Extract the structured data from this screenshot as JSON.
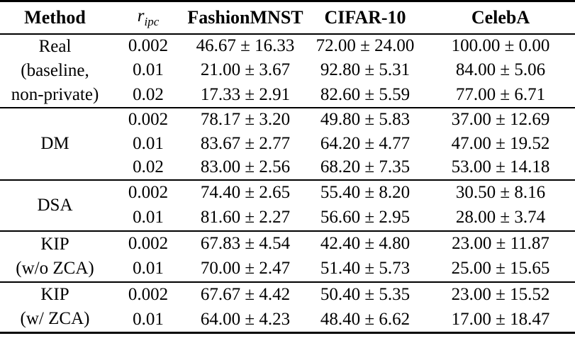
{
  "header": {
    "method": "Method",
    "ripc_base": "r",
    "ripc_sub": "ipc",
    "fashionmnst": "FashionMNST",
    "cifar10": "CIFAR-10",
    "celeba": "CelebA"
  },
  "groups": [
    {
      "method_lines": [
        "Real",
        "(baseline,",
        "non-private)"
      ],
      "rows": [
        {
          "ripc": "0.002",
          "fashionmnst": "46.67 ± 16.33",
          "cifar10": "72.00 ± 24.00",
          "celeba": "100.00 ± 0.00"
        },
        {
          "ripc": "0.01",
          "fashionmnst": "21.00 ± 3.67",
          "cifar10": "92.80 ± 5.31",
          "celeba": "84.00 ± 5.06"
        },
        {
          "ripc": "0.02",
          "fashionmnst": "17.33 ± 2.91",
          "cifar10": "82.60 ± 5.59",
          "celeba": "77.00 ± 6.71"
        }
      ]
    },
    {
      "method_lines": [
        "DM"
      ],
      "rows": [
        {
          "ripc": "0.002",
          "fashionmnst": "78.17 ± 3.20",
          "cifar10": "49.80 ± 5.83",
          "celeba": "37.00 ± 12.69"
        },
        {
          "ripc": "0.01",
          "fashionmnst": "83.67 ± 2.77",
          "cifar10": "64.20 ± 4.77",
          "celeba": "47.00 ± 19.52"
        },
        {
          "ripc": "0.02",
          "fashionmnst": "83.00 ± 2.56",
          "cifar10": "68.20 ± 7.35",
          "celeba": "53.00 ± 14.18"
        }
      ]
    },
    {
      "method_lines": [
        "DSA"
      ],
      "rows": [
        {
          "ripc": "0.002",
          "fashionmnst": "74.40 ± 2.65",
          "cifar10": "55.40 ± 8.20",
          "celeba": "30.50 ± 8.16"
        },
        {
          "ripc": "0.01",
          "fashionmnst": "81.60 ± 2.27",
          "cifar10": "56.60 ± 2.95",
          "celeba": "28.00 ± 3.74"
        }
      ]
    },
    {
      "method_lines": [
        "KIP",
        "(w/o ZCA)"
      ],
      "rows": [
        {
          "ripc": "0.002",
          "fashionmnst": "67.83 ± 4.54",
          "cifar10": "42.40 ± 4.80",
          "celeba": "23.00 ± 11.87"
        },
        {
          "ripc": "0.01",
          "fashionmnst": "70.00 ± 2.47",
          "cifar10": "51.40 ± 5.73",
          "celeba": "25.00 ± 15.65"
        }
      ]
    },
    {
      "method_lines": [
        "KIP",
        "(w/ ZCA)"
      ],
      "rows": [
        {
          "ripc": "0.002",
          "fashionmnst": "67.67 ± 4.42",
          "cifar10": "50.40 ± 5.35",
          "celeba": "23.00 ± 15.52"
        },
        {
          "ripc": "0.01",
          "fashionmnst": "64.00 ± 4.23",
          "cifar10": "48.40 ± 6.62",
          "celeba": "17.00 ± 18.47"
        }
      ]
    }
  ]
}
